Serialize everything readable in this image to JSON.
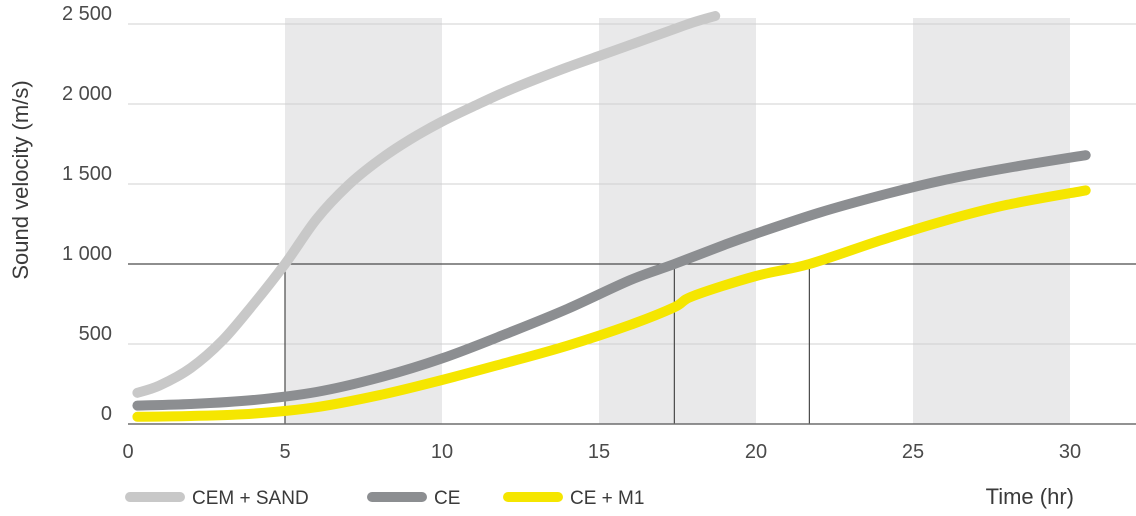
{
  "chart_data": {
    "type": "line",
    "title": "",
    "xlabel": "Time (hr)",
    "ylabel": "Sound velocity (m/s)",
    "xlim": [
      0,
      32
    ],
    "ylim": [
      0,
      2550
    ],
    "x_ticks": [
      0,
      5,
      10,
      15,
      20,
      25,
      30
    ],
    "y_ticks": [
      {
        "value": 0,
        "label": "0"
      },
      {
        "value": 500,
        "label": "500"
      },
      {
        "value": 1000,
        "label": "1 000"
      },
      {
        "value": 1500,
        "label": "1 500"
      },
      {
        "value": 2000,
        "label": "2 000"
      },
      {
        "value": 2500,
        "label": "2 500"
      }
    ],
    "shaded_x_bands": [
      [
        5,
        10
      ],
      [
        15,
        20
      ],
      [
        25,
        30
      ]
    ],
    "reference_line": {
      "y": 1000,
      "x_markers": [
        5.0,
        17.4,
        21.7
      ]
    },
    "grid": "horizontal",
    "legend_position": "bottom-left",
    "series": [
      {
        "name": "CEM + SAND",
        "color": "#c8c8c8",
        "x": [
          0.3,
          1,
          2,
          3,
          4,
          5,
          6,
          7,
          8,
          9,
          10,
          11,
          12,
          13,
          14,
          15,
          16,
          17,
          18,
          18.7
        ],
        "y": [
          195,
          240,
          350,
          520,
          750,
          1000,
          1280,
          1490,
          1650,
          1780,
          1890,
          1985,
          2075,
          2155,
          2230,
          2300,
          2370,
          2440,
          2510,
          2550
        ]
      },
      {
        "name": "CE",
        "color": "#8c8e91",
        "x": [
          0.3,
          2,
          4,
          6,
          8,
          10,
          12,
          14,
          16,
          17.4,
          19,
          20,
          22,
          24,
          26,
          28,
          30.5
        ],
        "y": [
          115,
          125,
          150,
          200,
          290,
          410,
          560,
          720,
          900,
          1000,
          1120,
          1190,
          1320,
          1430,
          1525,
          1600,
          1680
        ]
      },
      {
        "name": "CE + M1",
        "color": "#f5e600",
        "x": [
          0.3,
          2,
          4,
          6,
          8,
          10,
          12,
          14,
          16,
          17.4,
          18,
          20,
          21.7,
          24,
          26,
          28,
          30.5
        ],
        "y": [
          45,
          50,
          65,
          105,
          180,
          275,
          380,
          490,
          620,
          730,
          800,
          925,
          1000,
          1150,
          1270,
          1370,
          1460
        ]
      }
    ]
  }
}
